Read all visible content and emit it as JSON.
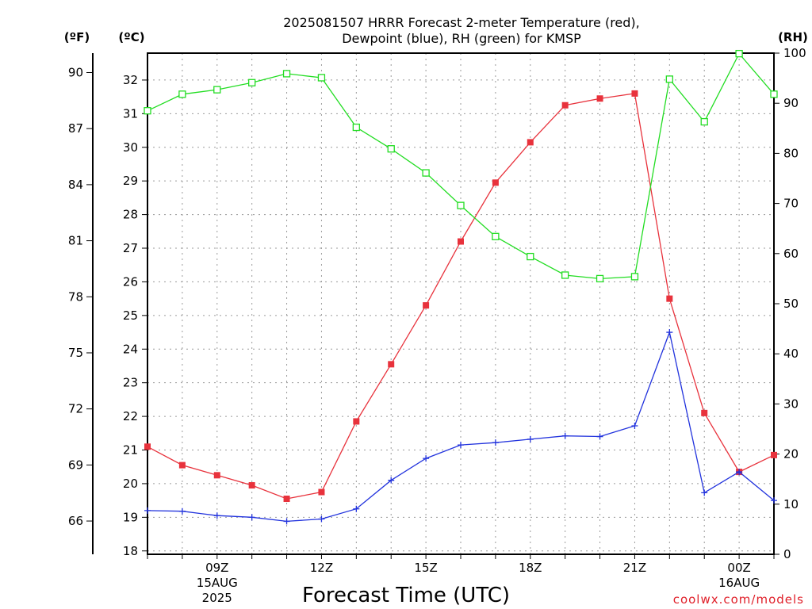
{
  "page": {
    "title_line1": "2025081507 HRRR Forecast 2-meter Temperature (red),",
    "title_line2": "Dewpoint (blue), RH (green) for KMSP",
    "xlabel": "Forecast Time (UTC)",
    "credit": "coolwx.com/models"
  },
  "chart_data": {
    "type": "line",
    "title": "2025081507 HRRR Forecast 2-meter Temperature (red), Dewpoint (blue), RH (green) for KMSP",
    "xlabel": "Forecast Time (UTC)",
    "x": [
      "07Z",
      "08Z",
      "09Z",
      "10Z",
      "11Z",
      "12Z",
      "13Z",
      "14Z",
      "15Z",
      "16Z",
      "17Z",
      "18Z",
      "19Z",
      "20Z",
      "21Z",
      "22Z",
      "23Z",
      "00Z",
      "01Z"
    ],
    "xlim_hours": [
      7,
      25
    ],
    "x_ticks": [
      {
        "hour": 9,
        "label": "09Z",
        "sub1": "15AUG",
        "sub2": "2025"
      },
      {
        "hour": 12,
        "label": "12Z"
      },
      {
        "hour": 15,
        "label": "15Z"
      },
      {
        "hour": 18,
        "label": "18Z"
      },
      {
        "hour": 21,
        "label": "21Z"
      },
      {
        "hour": 24,
        "label": "00Z",
        "sub1": "16AUG"
      }
    ],
    "axes": {
      "celsius": {
        "unit_label": "(ºC)",
        "range": [
          17.9,
          32.8
        ],
        "ticks": [
          18,
          19,
          20,
          21,
          22,
          23,
          24,
          25,
          26,
          27,
          28,
          29,
          30,
          31,
          32
        ]
      },
      "fahrenheit": {
        "unit_label": "(ºF)",
        "ticks": [
          66,
          69,
          72,
          75,
          78,
          81,
          84,
          87,
          90
        ]
      },
      "rh": {
        "unit_label": "(RH)",
        "range": [
          0,
          100
        ],
        "ticks": [
          0,
          10,
          20,
          30,
          40,
          50,
          60,
          70,
          80,
          90,
          100
        ]
      }
    },
    "grid": true,
    "series": [
      {
        "name": "Temperature",
        "axis": "celsius",
        "color": "#e8323c",
        "marker": "filled-square",
        "values": [
          21.1,
          20.55,
          20.25,
          19.95,
          19.55,
          19.75,
          21.85,
          23.55,
          25.3,
          27.2,
          28.95,
          30.15,
          31.25,
          31.45,
          31.6,
          25.5,
          22.1,
          20.35,
          20.85
        ]
      },
      {
        "name": "Dewpoint",
        "axis": "celsius",
        "color": "#2233dd",
        "marker": "plus",
        "values": [
          19.2,
          19.18,
          19.05,
          19.0,
          18.88,
          18.95,
          19.25,
          20.1,
          20.75,
          21.15,
          21.22,
          21.32,
          21.42,
          21.4,
          21.72,
          24.5,
          19.73,
          20.35,
          19.5
        ]
      },
      {
        "name": "RH",
        "axis": "rh",
        "color": "#22dd22",
        "marker": "open-square",
        "values": [
          88.5,
          91.8,
          92.7,
          94.1,
          95.9,
          95.1,
          85.2,
          80.9,
          76.1,
          69.6,
          63.4,
          59.4,
          55.7,
          55.0,
          55.4,
          94.8,
          86.3,
          99.9,
          91.8
        ]
      }
    ]
  }
}
